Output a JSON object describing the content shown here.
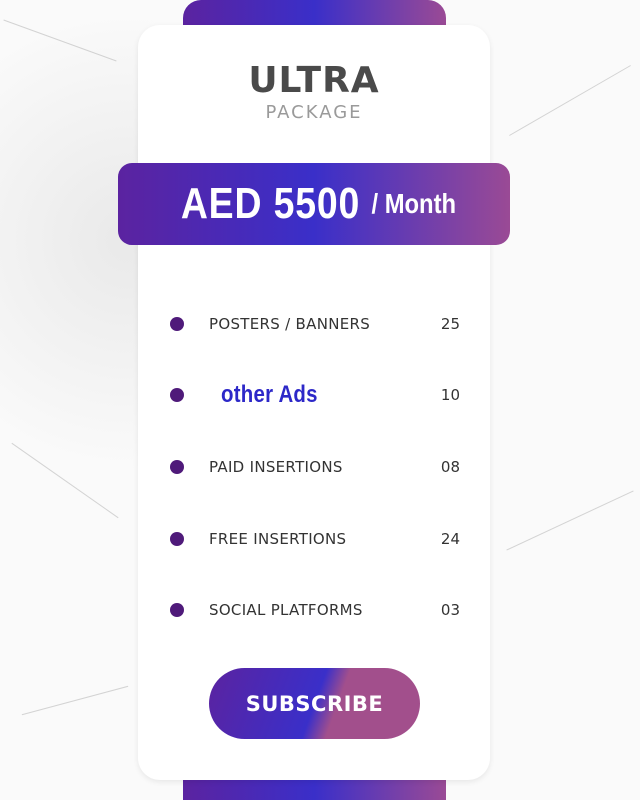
{
  "package": {
    "title": "ULTRA",
    "subtitle": "PACKAGE"
  },
  "price": {
    "amount": "AED 5500",
    "period": "/ Month"
  },
  "features": [
    {
      "label": "POSTERS / BANNERS",
      "value": "25"
    },
    {
      "label": "other Ads",
      "value": "10"
    },
    {
      "label": "PAID INSERTIONS",
      "value": "08"
    },
    {
      "label": "FREE INSERTIONS",
      "value": "24"
    },
    {
      "label": "SOCIAL PLATFORMS",
      "value": "03"
    }
  ],
  "subscribe_label": "SUBSCRIBE",
  "colors": {
    "gradient_start": "#5b23a0",
    "gradient_mid": "#3a2fc9",
    "gradient_end": "#9a4a95",
    "bullet": "#4f1a7a"
  }
}
